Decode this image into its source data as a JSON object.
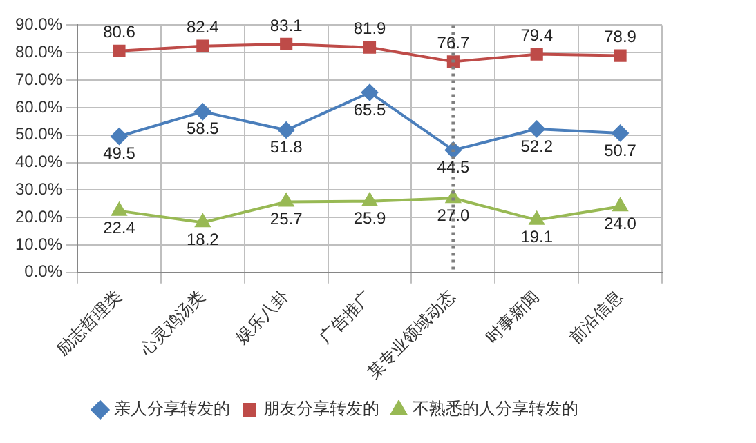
{
  "chart_data": {
    "type": "line",
    "categories": [
      "励志哲理类",
      "心灵鸡汤类",
      "娱乐八卦",
      "广告推广",
      "某专业领域动态",
      "时事新闻",
      "前沿信息"
    ],
    "series": [
      {
        "name": "亲人分享转发的",
        "color": "#4a7ebb",
        "marker": "diamond",
        "values": [
          49.5,
          58.5,
          51.8,
          65.5,
          44.5,
          52.2,
          50.7
        ],
        "value_labels": [
          "49.5",
          "58.5",
          "51.8",
          "65.5",
          "44.5",
          "52.2",
          "50.7"
        ]
      },
      {
        "name": "朋友分享转发的",
        "color": "#be4b48",
        "marker": "square",
        "values": [
          80.6,
          82.4,
          83.1,
          81.9,
          76.7,
          79.4,
          78.9
        ],
        "value_labels": [
          "80.6",
          "82.4",
          "83.1",
          "81.9",
          "76.7",
          "79.4",
          "78.9"
        ]
      },
      {
        "name": "不熟悉的人分享转发的",
        "color": "#98b954",
        "marker": "triangle",
        "values": [
          22.4,
          18.2,
          25.7,
          25.9,
          27.0,
          19.1,
          24.0
        ],
        "value_labels": [
          "22.4",
          "18.2",
          "25.7",
          "25.9",
          "27.0",
          "19.1",
          "24.0"
        ]
      }
    ],
    "ylim": [
      0,
      90
    ],
    "yticks": [
      {
        "value": 0,
        "label": "0.0%"
      },
      {
        "value": 10,
        "label": "10.0%"
      },
      {
        "value": 20,
        "label": "20.0%"
      },
      {
        "value": 30,
        "label": "30.0%"
      },
      {
        "value": 40,
        "label": "40.0%"
      },
      {
        "value": 50,
        "label": "50.0%"
      },
      {
        "value": 60,
        "label": "60.0%"
      },
      {
        "value": 70,
        "label": "70.0%"
      },
      {
        "value": 80,
        "label": "80.0%"
      },
      {
        "value": 90,
        "label": "90.0%"
      }
    ],
    "ref_lines": [
      {
        "axis": "x",
        "value": "某专业领域动态",
        "color": "#7f7f7f",
        "line_style": "dotted"
      }
    ],
    "grid": true,
    "legend": "bottom",
    "line_style": "solid"
  }
}
